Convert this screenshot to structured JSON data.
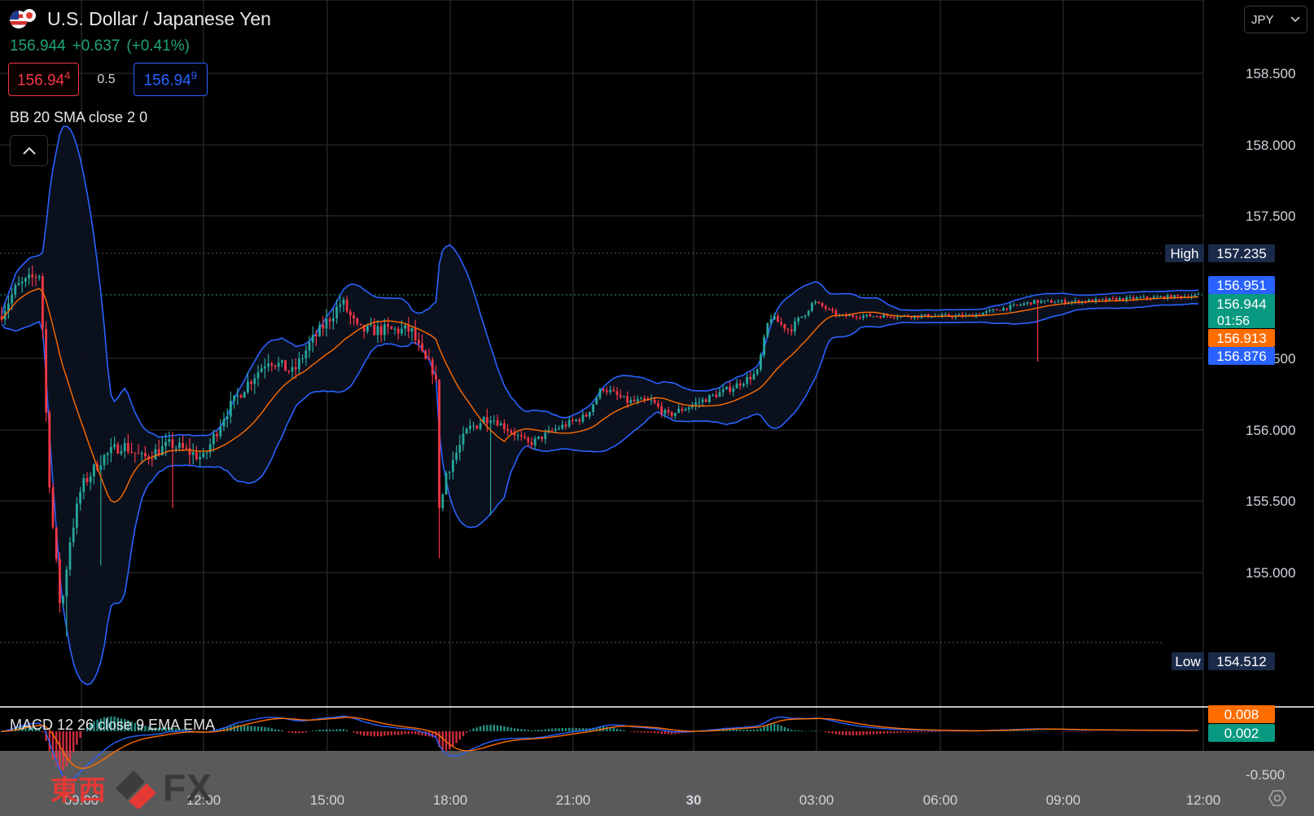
{
  "header": {
    "title": "U.S. Dollar / Japanese Yen",
    "last_price": "156.944",
    "change": "+0.637",
    "change_pct": "(+0.41%)",
    "bid": "156.944",
    "bid_main": "156.94",
    "bid_pip": "4",
    "spread": "0.5",
    "ask_main": "156.94",
    "ask_pip": "9",
    "indicator_label": "BB 20 SMA close 2 0",
    "collapse_icon": "chevron-up-icon"
  },
  "currency_selector": {
    "label": "JPY",
    "icon": "chevron-down-icon"
  },
  "price_axis": {
    "ticks": [
      "158.500",
      "158.000",
      "157.500",
      "156.500",
      "156.000",
      "155.500",
      "155.000"
    ],
    "high_label": "High",
    "high_value": "157.235",
    "low_label": "Low",
    "low_value": "154.512",
    "upper_band": "156.951",
    "last": "156.944",
    "countdown": "01:56",
    "basis": "156.913",
    "lower_band": "156.876"
  },
  "macd": {
    "label": "MACD 12 26 close 9 EMA EMA",
    "value_1": "0.008",
    "value_2": "0.002",
    "tick": "-0.500"
  },
  "time_axis": {
    "ticks": [
      "09:00",
      "12:00",
      "15:00",
      "18:00",
      "21:00",
      "30",
      "03:00",
      "06:00",
      "09:00",
      "12:00"
    ]
  },
  "logo": {
    "cjk": "東西",
    "fx": "FX"
  },
  "colors": {
    "up": "#26a69a",
    "down": "#f23645",
    "band": "#2962ff",
    "basis": "#ff6d00",
    "grid": "#2a2a2a",
    "background": "#000000"
  },
  "chart_data": {
    "type": "line",
    "x": [
      "09:00",
      "12:00",
      "15:00",
      "18:00",
      "21:00",
      "30",
      "03:00",
      "06:00",
      "09:00",
      "12:00"
    ],
    "series": [
      {
        "values": [
          155.7,
          155.8,
          156.5,
          155.9,
          156.1,
          156.3,
          156.8,
          156.86,
          156.9,
          156.94
        ]
      },
      {
        "values": [
          155.95,
          155.85,
          156.45,
          156.1,
          156.05,
          156.2,
          156.7,
          156.85,
          156.88,
          156.913
        ]
      }
    ],
    "ylim": [
      154.3,
      158.8
    ],
    "grid": true
  }
}
